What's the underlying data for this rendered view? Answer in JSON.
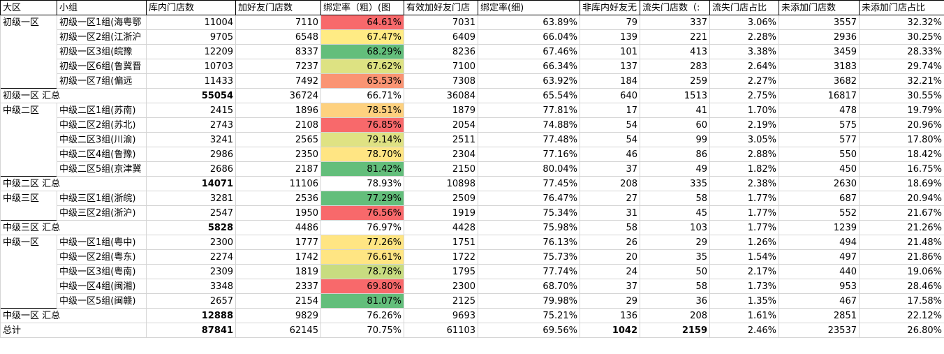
{
  "columns": [
    "大区",
    "小组",
    "库内门店数",
    "加好友门店数",
    "绑定率（粗）(图",
    "有效加好友门店",
    "绑定率(细)",
    "非库内好友无",
    "流失门店数（:",
    "流失门店占比",
    "未添加门店数",
    "未添加门店占比"
  ],
  "rows": [
    {
      "type": "item",
      "region": "初级一区",
      "group": "初级一区1组(海粤鄂",
      "store": "11004",
      "friend": "7110",
      "bind_rough": "64.61%",
      "valid": "7031",
      "bind_fine": "63.89%",
      "non_store": "79",
      "lost": "337",
      "lost_ratio": "3.06%",
      "unadded": "3557",
      "unadded_ratio": "32.32%",
      "color": "#f8696b"
    },
    {
      "type": "item",
      "region": "",
      "group": "初级一区2组(江浙沪",
      "store": "9705",
      "friend": "6548",
      "bind_rough": "67.47%",
      "valid": "6409",
      "bind_fine": "66.04%",
      "non_store": "139",
      "lost": "221",
      "lost_ratio": "2.28%",
      "unadded": "2936",
      "unadded_ratio": "30.25%",
      "color": "#ffeb84"
    },
    {
      "type": "item",
      "region": "",
      "group": "初级一区3组(皖豫",
      "store": "12209",
      "friend": "8337",
      "bind_rough": "68.29%",
      "valid": "8236",
      "bind_fine": "67.46%",
      "non_store": "101",
      "lost": "413",
      "lost_ratio": "3.38%",
      "unadded": "3459",
      "unadded_ratio": "28.33%",
      "color": "#63be7b"
    },
    {
      "type": "item",
      "region": "",
      "group": "初级一区6组(鲁冀晋",
      "store": "10703",
      "friend": "7237",
      "bind_rough": "67.62%",
      "valid": "7100",
      "bind_fine": "66.34%",
      "non_store": "137",
      "lost": "283",
      "lost_ratio": "2.64%",
      "unadded": "3183",
      "unadded_ratio": "29.74%",
      "color": "#dde282"
    },
    {
      "type": "item",
      "region": "",
      "group": "初级一区7组(偏远",
      "store": "11433",
      "friend": "7492",
      "bind_rough": "65.53%",
      "valid": "7308",
      "bind_fine": "63.92%",
      "non_store": "184",
      "lost": "259",
      "lost_ratio": "2.27%",
      "unadded": "3682",
      "unadded_ratio": "32.21%",
      "color": "#fa9473"
    },
    {
      "type": "sum",
      "region": "初级一区 汇总",
      "group": "",
      "store": "55054",
      "friend": "36724",
      "bind_rough": "66.71%",
      "valid": "36084",
      "bind_fine": "65.54%",
      "non_store": "640",
      "lost": "1513",
      "lost_ratio": "2.75%",
      "unadded": "16817",
      "unadded_ratio": "30.55%",
      "color": ""
    },
    {
      "type": "item",
      "region": "中级二区",
      "group": "中级二区1组(苏南)",
      "store": "2415",
      "friend": "1896",
      "bind_rough": "78.51%",
      "valid": "1879",
      "bind_fine": "77.81%",
      "non_store": "17",
      "lost": "41",
      "lost_ratio": "1.70%",
      "unadded": "478",
      "unadded_ratio": "19.79%",
      "color": "#fed17f"
    },
    {
      "type": "item",
      "region": "",
      "group": "中级二区2组(苏北)",
      "store": "2743",
      "friend": "2108",
      "bind_rough": "76.85%",
      "valid": "2054",
      "bind_fine": "74.88%",
      "non_store": "54",
      "lost": "60",
      "lost_ratio": "2.19%",
      "unadded": "575",
      "unadded_ratio": "20.96%",
      "color": "#f8696b"
    },
    {
      "type": "item",
      "region": "",
      "group": "中级二区3组(川渝)",
      "store": "3241",
      "friend": "2565",
      "bind_rough": "79.14%",
      "valid": "2511",
      "bind_fine": "77.48%",
      "non_store": "54",
      "lost": "99",
      "lost_ratio": "3.05%",
      "unadded": "577",
      "unadded_ratio": "17.80%",
      "color": "#dfe283"
    },
    {
      "type": "item",
      "region": "",
      "group": "中级二区4组(鲁豫)",
      "store": "2986",
      "friend": "2350",
      "bind_rough": "78.70%",
      "valid": "2304",
      "bind_fine": "77.16%",
      "non_store": "46",
      "lost": "86",
      "lost_ratio": "2.88%",
      "unadded": "550",
      "unadded_ratio": "18.42%",
      "color": "#ffe583"
    },
    {
      "type": "item",
      "region": "",
      "group": "中级二区5组(京津冀",
      "store": "2686",
      "friend": "2187",
      "bind_rough": "81.42%",
      "valid": "2150",
      "bind_fine": "80.04%",
      "non_store": "37",
      "lost": "49",
      "lost_ratio": "1.82%",
      "unadded": "450",
      "unadded_ratio": "16.75%",
      "color": "#63be7b"
    },
    {
      "type": "sum",
      "region": "中级二区 汇总",
      "group": "",
      "store": "14071",
      "friend": "11106",
      "bind_rough": "78.93%",
      "valid": "10898",
      "bind_fine": "77.45%",
      "non_store": "208",
      "lost": "335",
      "lost_ratio": "2.38%",
      "unadded": "2630",
      "unadded_ratio": "18.69%",
      "color": ""
    },
    {
      "type": "item",
      "region": "中级三区",
      "group": "中级三区1组(浙皖)",
      "store": "3281",
      "friend": "2536",
      "bind_rough": "77.29%",
      "valid": "2509",
      "bind_fine": "76.47%",
      "non_store": "27",
      "lost": "58",
      "lost_ratio": "1.77%",
      "unadded": "687",
      "unadded_ratio": "20.94%",
      "color": "#63be7b"
    },
    {
      "type": "item",
      "region": "",
      "group": "中级三区2组(浙沪)",
      "store": "2547",
      "friend": "1950",
      "bind_rough": "76.56%",
      "valid": "1919",
      "bind_fine": "75.34%",
      "non_store": "31",
      "lost": "45",
      "lost_ratio": "1.77%",
      "unadded": "552",
      "unadded_ratio": "21.67%",
      "color": "#f8696b"
    },
    {
      "type": "sum",
      "region": "中级三区 汇总",
      "group": "",
      "store": "5828",
      "friend": "4486",
      "bind_rough": "76.97%",
      "valid": "4428",
      "bind_fine": "75.98%",
      "non_store": "58",
      "lost": "103",
      "lost_ratio": "1.77%",
      "unadded": "1239",
      "unadded_ratio": "21.26%",
      "color": ""
    },
    {
      "type": "item",
      "region": "中级一区",
      "group": "中级一区1组(粤中)",
      "store": "2300",
      "friend": "1777",
      "bind_rough": "77.26%",
      "valid": "1751",
      "bind_fine": "76.13%",
      "non_store": "26",
      "lost": "29",
      "lost_ratio": "1.26%",
      "unadded": "494",
      "unadded_ratio": "21.48%",
      "color": "#ffe583"
    },
    {
      "type": "item",
      "region": "",
      "group": "中级一区2组(粤东)",
      "store": "2274",
      "friend": "1742",
      "bind_rough": "76.61%",
      "valid": "1722",
      "bind_fine": "75.73%",
      "non_store": "20",
      "lost": "35",
      "lost_ratio": "1.54%",
      "unadded": "497",
      "unadded_ratio": "21.86%",
      "color": "#ffe583"
    },
    {
      "type": "item",
      "region": "",
      "group": "中级一区3组(粤南)",
      "store": "2309",
      "friend": "1819",
      "bind_rough": "78.78%",
      "valid": "1795",
      "bind_fine": "77.74%",
      "non_store": "24",
      "lost": "50",
      "lost_ratio": "2.17%",
      "unadded": "440",
      "unadded_ratio": "19.06%",
      "color": "#c8dc80"
    },
    {
      "type": "item",
      "region": "",
      "group": "中级一区4组(闽湘)",
      "store": "3348",
      "friend": "2337",
      "bind_rough": "69.80%",
      "valid": "2300",
      "bind_fine": "68.70%",
      "non_store": "37",
      "lost": "58",
      "lost_ratio": "1.73%",
      "unadded": "953",
      "unadded_ratio": "28.46%",
      "color": "#f8696b"
    },
    {
      "type": "item",
      "region": "",
      "group": "中级一区5组(闽赣)",
      "store": "2657",
      "friend": "2154",
      "bind_rough": "81.07%",
      "valid": "2125",
      "bind_fine": "79.98%",
      "non_store": "29",
      "lost": "36",
      "lost_ratio": "1.35%",
      "unadded": "467",
      "unadded_ratio": "17.58%",
      "color": "#63be7b"
    },
    {
      "type": "sum",
      "region": "中级一区 汇总",
      "group": "",
      "store": "12888",
      "friend": "9829",
      "bind_rough": "76.26%",
      "valid": "9693",
      "bind_fine": "75.21%",
      "non_store": "136",
      "lost": "208",
      "lost_ratio": "1.61%",
      "unadded": "2851",
      "unadded_ratio": "22.12%",
      "color": ""
    },
    {
      "type": "total",
      "region": "总计",
      "group": "",
      "store": "87841",
      "friend": "62145",
      "bind_rough": "70.75%",
      "valid": "61103",
      "bind_fine": "69.56%",
      "non_store": "1042",
      "lost": "2159",
      "lost_ratio": "2.46%",
      "unadded": "23537",
      "unadded_ratio": "26.80%",
      "color": ""
    }
  ]
}
